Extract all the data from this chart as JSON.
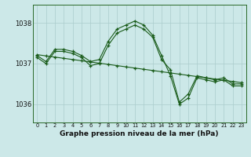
{
  "title": "Graphe pression niveau de la mer (hPa)",
  "background_color": "#cce8e8",
  "grid_color": "#aacccc",
  "line_color": "#1a5c1a",
  "hours": [
    0,
    1,
    2,
    3,
    4,
    5,
    6,
    7,
    8,
    9,
    10,
    11,
    12,
    13,
    14,
    15,
    16,
    17,
    18,
    19,
    20,
    21,
    22,
    23
  ],
  "series1": [
    1037.15,
    1037.0,
    1037.3,
    1037.3,
    1037.25,
    1037.15,
    1036.95,
    1037.0,
    1037.45,
    1037.75,
    1037.85,
    1037.95,
    1037.85,
    1037.65,
    1037.1,
    1036.85,
    1036.05,
    1036.25,
    1036.7,
    1036.65,
    1036.6,
    1036.65,
    1036.5,
    1036.5
  ],
  "series2": [
    1037.2,
    1037.05,
    1037.35,
    1037.35,
    1037.3,
    1037.2,
    1037.05,
    1037.1,
    1037.55,
    1037.85,
    1037.95,
    1038.05,
    1037.95,
    1037.7,
    1037.2,
    1036.7,
    1036.0,
    1036.15,
    1036.65,
    1036.6,
    1036.55,
    1036.6,
    1036.45,
    1036.45
  ],
  "series3_linear": [
    1037.22,
    1037.19,
    1037.16,
    1037.13,
    1037.1,
    1037.07,
    1037.04,
    1037.01,
    1036.98,
    1036.95,
    1036.92,
    1036.89,
    1036.86,
    1036.83,
    1036.8,
    1036.77,
    1036.74,
    1036.71,
    1036.68,
    1036.65,
    1036.62,
    1036.59,
    1036.56,
    1036.53
  ],
  "ylim": [
    1035.55,
    1038.45
  ],
  "yticks": [
    1036,
    1037,
    1038
  ],
  "title_fontsize": 6.5
}
